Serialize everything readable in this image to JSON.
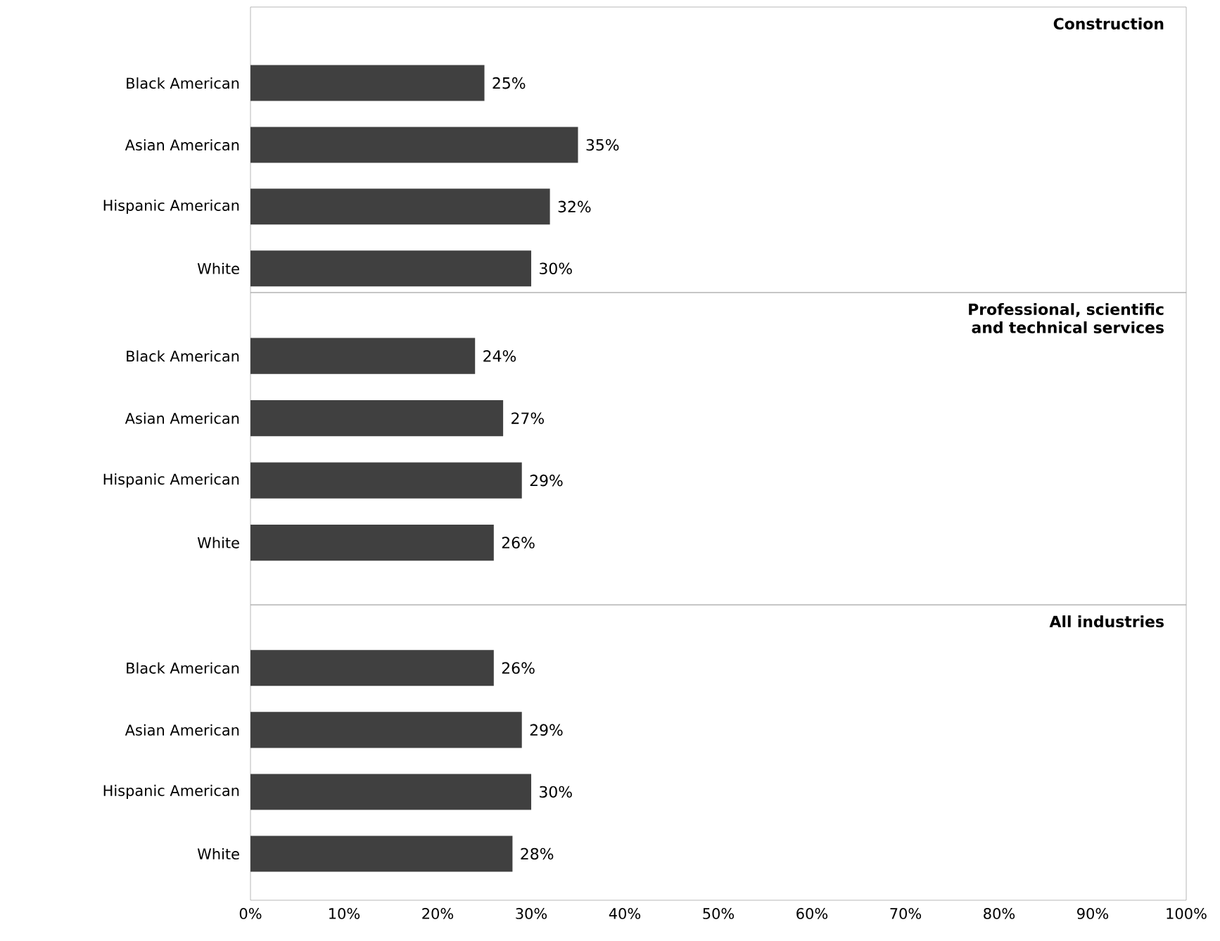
{
  "chart_data": [
    {
      "type": "bar",
      "orientation": "horizontal",
      "title": "Construction",
      "categories": [
        "Black American",
        "Asian American",
        "Hispanic American",
        "White"
      ],
      "values": [
        25,
        35,
        32,
        30
      ],
      "value_labels": [
        "25%",
        "35%",
        "32%",
        "30%"
      ],
      "color": "#404040",
      "xlim": [
        0,
        100
      ],
      "tick_labels": "y"
    },
    {
      "type": "bar",
      "orientation": "horizontal",
      "title": "Professional, scientific and technical services",
      "categories": [
        "Black American",
        "Asian American",
        "Hispanic American",
        "White"
      ],
      "values": [
        24,
        27,
        29,
        26
      ],
      "value_labels": [
        "24%",
        "27%",
        "29%",
        "26%"
      ],
      "color": "#404040",
      "xlim": [
        0,
        100
      ],
      "tick_labels": "y"
    },
    {
      "type": "bar",
      "orientation": "horizontal",
      "title": "All industries",
      "categories": [
        "Black American",
        "Asian American",
        "Hispanic American",
        "White"
      ],
      "values": [
        26,
        29,
        30,
        28
      ],
      "value_labels": [
        "26%",
        "29%",
        "30%",
        "28%"
      ],
      "color": "#404040",
      "xlim": [
        0,
        100
      ],
      "xticks": [
        {
          "value": 0,
          "label": "0%"
        },
        {
          "value": 10,
          "label": "10%"
        },
        {
          "value": 20,
          "label": "20%"
        },
        {
          "value": 30,
          "label": "30%"
        },
        {
          "value": 40,
          "label": "40%"
        },
        {
          "value": 50,
          "label": "50%"
        },
        {
          "value": 60,
          "label": "60%"
        },
        {
          "value": 70,
          "label": "70%"
        },
        {
          "value": 80,
          "label": "80%"
        },
        {
          "value": 90,
          "label": "90%"
        },
        {
          "value": 100,
          "label": "100%"
        }
      ]
    }
  ]
}
